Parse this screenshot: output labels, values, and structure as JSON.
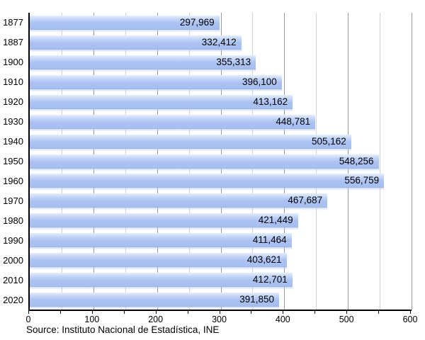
{
  "chart_data": {
    "type": "bar",
    "orientation": "horizontal",
    "title": "",
    "xlabel": "",
    "ylabel": "",
    "categories": [
      "1877",
      "1887",
      "1900",
      "1910",
      "1920",
      "1930",
      "1940",
      "1950",
      "1960",
      "1970",
      "1980",
      "1990",
      "2000",
      "2010",
      "2020"
    ],
    "values": [
      297969,
      332412,
      355313,
      396100,
      413162,
      448781,
      505162,
      548256,
      556759,
      467687,
      421449,
      411464,
      403621,
      412701,
      391850
    ],
    "value_labels": [
      "297,969",
      "332,412",
      "355,313",
      "396,100",
      "413,162",
      "448,781",
      "505,162",
      "548,256",
      "556,759",
      "467,687",
      "421,449",
      "411,464",
      "403,621",
      "412,701",
      "391,850"
    ],
    "x_axis": {
      "min": 0,
      "max": 600,
      "major_ticks": [
        0,
        100,
        200,
        300,
        400,
        500,
        600
      ],
      "minor_step": 50,
      "scale": "thousands"
    },
    "legend": null,
    "grid": "vertical-minor-and-major",
    "source": "Source: Instituto Nacional de Estadística, INE",
    "colors": {
      "bar": "#abc2f2",
      "bar_highlight": "#e4eefc",
      "grid_minor": "#d2d2d2",
      "grid_major": "#9a9a9a",
      "axis": "#000000",
      "text": "#000000",
      "background": "#ffffff"
    }
  }
}
